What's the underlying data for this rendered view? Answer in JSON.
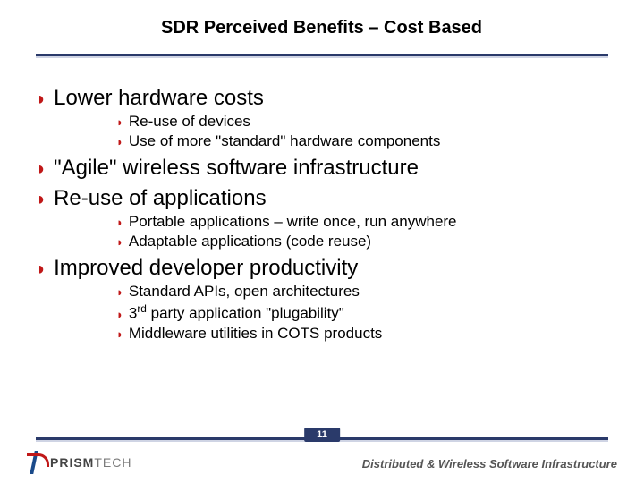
{
  "slide": {
    "title": "SDR Perceived Benefits – Cost Based",
    "page_number": "11",
    "colors": {
      "accent_red": "#c01818",
      "rule_dark": "#2a3a6a",
      "rule_light": "#cfd4e4"
    },
    "bullets": [
      {
        "text": "Lower hardware costs",
        "sub": [
          {
            "text": "Re-use of devices"
          },
          {
            "text": "Use of more \"standard\" hardware components"
          }
        ]
      },
      {
        "text": "\"Agile\" wireless software infrastructure",
        "sub": []
      },
      {
        "text": "Re-use of applications",
        "sub": [
          {
            "text": "Portable applications – write once, run anywhere"
          },
          {
            "text": "Adaptable applications (code reuse)"
          }
        ]
      },
      {
        "text": "Improved developer productivity",
        "sub": [
          {
            "text": "Standard APIs, open architectures"
          },
          {
            "html": "3<sup>rd</sup> party application \"plugability\""
          },
          {
            "text": "Middleware utilities in COTS products"
          }
        ]
      }
    ]
  },
  "footer": {
    "logo_bold": "PRISM",
    "logo_light": "TECH",
    "tagline": "Distributed & Wireless Software Infrastructure"
  }
}
